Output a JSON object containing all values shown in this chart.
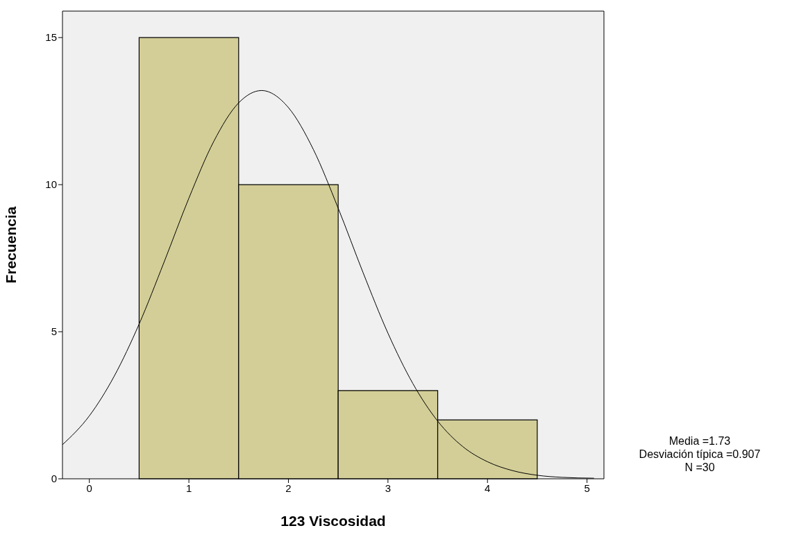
{
  "chart_data": {
    "type": "histogram",
    "xlabel": "123 Viscosidad",
    "ylabel": "Frecuencia",
    "bins": [
      0.5,
      1.5,
      2.5,
      3.5,
      4.5
    ],
    "values": [
      15,
      10,
      3,
      2
    ],
    "color": "#d3ce97",
    "series": [
      {
        "type": "line",
        "color": "#000000",
        "x": [
          -0.27,
          0,
          0.25,
          0.5,
          0.75,
          1,
          1.25,
          1.5,
          1.73,
          2,
          2.25,
          2.5,
          2.75,
          3,
          3.25,
          3.5,
          3.75,
          4,
          4.25,
          4.5,
          4.75,
          5.07
        ],
        "values": [
          1.16,
          2.14,
          3.49,
          5.26,
          7.36,
          9.54,
          11.47,
          12.78,
          13.2,
          12.62,
          11.2,
          9.2,
          7.01,
          4.95,
          3.24,
          1.96,
          1.1,
          0.58,
          0.28,
          0.12,
          0.05,
          0.02
        ]
      }
    ],
    "xlim": [
      -0.27,
      5.17
    ],
    "ylim": [
      0,
      15.9
    ],
    "xticks": [
      0,
      1,
      2,
      3,
      4,
      5
    ],
    "yticks": [
      0,
      5,
      10,
      15
    ],
    "grid": false,
    "marker": "none",
    "annotations": [
      "Media =1.73",
      "Desviación típica =0.907",
      "N =30"
    ]
  }
}
